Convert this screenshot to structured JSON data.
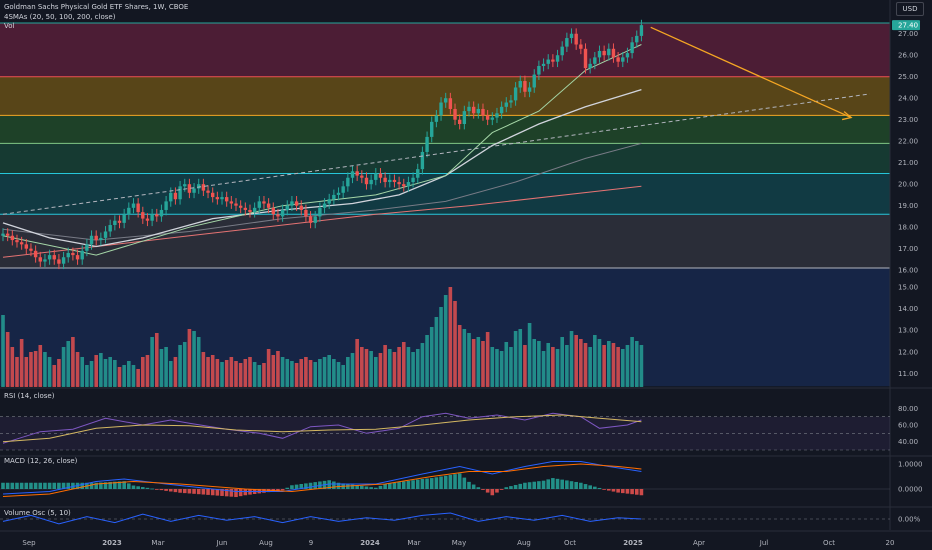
{
  "header": {
    "title": "Goldman Sachs Physical Gold ETF Shares, 1W, CBOE",
    "ma_legend": "4SMAs (20, 50, 100, 200, close)",
    "vol_legend": "Vol",
    "currency_button": "USD"
  },
  "indicators": {
    "rsi_label": "RSI (14, close)",
    "macd_label": "MACD (12, 26, close)",
    "volosc_label": "Volume Osc (5, 10)"
  },
  "colors": {
    "background": "#131722",
    "up": "#26a69a",
    "down": "#ef5350",
    "sma_white": "#d1d4dc",
    "sma_gray": "#787b86",
    "sma_green": "#a5d6a7",
    "sma_red": "#e57373",
    "arrow": "#f5a623",
    "rsi": "#7e57c2",
    "rsi_ma": "#d4b862",
    "macd": "#2962ff",
    "signal": "#ff6d00",
    "volosc": "#2962ff"
  },
  "chart_data": {
    "type": "candlestick",
    "price_current": "27.40",
    "y_axis_price": [
      "27.00",
      "26.00",
      "25.00",
      "24.00",
      "23.00",
      "22.00",
      "21.00",
      "20.00",
      "19.00",
      "18.00",
      "17.00",
      "16.00",
      "15.00",
      "14.00",
      "13.00",
      "12.00",
      "11.00"
    ],
    "y_axis_rsi": [
      "80.00",
      "60.00",
      "40.00"
    ],
    "y_axis_macd": [
      "1.0000",
      "0.0000"
    ],
    "y_axis_volosc": [
      "0.00%"
    ],
    "x_axis": [
      "Sep",
      "2023",
      "Mar",
      "Jun",
      "Aug",
      "9",
      "2024",
      "Mar",
      "May",
      "Aug",
      "Oct",
      "2025",
      "Apr",
      "Jul",
      "Oct",
      "20"
    ],
    "ylim": [
      10.5,
      28
    ],
    "zones": [
      {
        "from": 25.0,
        "to": 27.5,
        "color": "#9c2752"
      },
      {
        "from": 23.2,
        "to": 25.0,
        "color": "#b8860b"
      },
      {
        "from": 21.9,
        "to": 23.2,
        "color": "#2e7d32"
      },
      {
        "from": 20.5,
        "to": 21.9,
        "color": "#1b6b4a"
      },
      {
        "from": 18.6,
        "to": 20.5,
        "color": "#0e6b73"
      },
      {
        "from": 16.1,
        "to": 18.6,
        "color": "#4a4d57"
      },
      {
        "from": 10.6,
        "to": 16.1,
        "color": "#1a3a7a"
      }
    ],
    "levels": [
      {
        "price": 27.5,
        "color": "#26a69a"
      },
      {
        "price": 25.0,
        "color": "#ef5350"
      },
      {
        "price": 23.2,
        "color": "#f5a623"
      },
      {
        "price": 21.9,
        "color": "#81c784"
      },
      {
        "price": 20.5,
        "color": "#26c6da"
      },
      {
        "price": 18.6,
        "color": "#26c6da"
      },
      {
        "price": 16.1,
        "color": "#b2b5be"
      }
    ],
    "closes": [
      17.7,
      17.6,
      17.4,
      17.3,
      17.2,
      17.0,
      16.9,
      16.6,
      16.4,
      16.5,
      16.7,
      16.5,
      16.3,
      16.6,
      16.8,
      16.7,
      16.5,
      16.9,
      17.2,
      17.6,
      17.4,
      17.5,
      17.8,
      18.1,
      18.3,
      18.2,
      18.6,
      18.9,
      19.1,
      18.7,
      18.4,
      18.3,
      18.6,
      18.5,
      18.8,
      19.2,
      19.6,
      19.3,
      19.9,
      20.0,
      19.6,
      19.8,
      20.0,
      19.7,
      19.6,
      19.4,
      19.3,
      19.4,
      19.2,
      19.1,
      19.0,
      18.9,
      18.8,
      18.7,
      18.9,
      19.2,
      19.1,
      18.9,
      18.6,
      18.5,
      18.8,
      19.0,
      19.2,
      19.0,
      18.8,
      18.5,
      18.2,
      18.5,
      18.9,
      19.1,
      19.3,
      19.5,
      19.6,
      19.9,
      20.3,
      20.6,
      20.4,
      20.3,
      20.0,
      20.2,
      20.5,
      20.3,
      20.1,
      20.2,
      20.1,
      20.0,
      19.9,
      20.1,
      20.3,
      20.7,
      21.5,
      22.2,
      22.9,
      23.2,
      23.8,
      24.0,
      23.5,
      23.0,
      22.8,
      23.4,
      23.6,
      23.3,
      23.5,
      23.2,
      23.0,
      23.1,
      23.3,
      23.6,
      23.8,
      23.9,
      24.5,
      24.8,
      24.3,
      24.5,
      25.1,
      25.5,
      25.6,
      25.8,
      25.7,
      26.0,
      26.4,
      26.8,
      27.0,
      26.5,
      26.3,
      25.4,
      25.6,
      25.9,
      26.2,
      26.0,
      26.3,
      25.9,
      25.7,
      25.9,
      26.1,
      26.6,
      26.9,
      27.4
    ],
    "volumes": [
      0.72,
      0.55,
      0.4,
      0.3,
      0.48,
      0.3,
      0.35,
      0.36,
      0.42,
      0.35,
      0.3,
      0.22,
      0.28,
      0.4,
      0.46,
      0.5,
      0.35,
      0.3,
      0.22,
      0.26,
      0.32,
      0.34,
      0.28,
      0.3,
      0.27,
      0.2,
      0.22,
      0.26,
      0.22,
      0.18,
      0.3,
      0.32,
      0.5,
      0.54,
      0.38,
      0.4,
      0.26,
      0.3,
      0.42,
      0.45,
      0.58,
      0.56,
      0.5,
      0.35,
      0.3,
      0.32,
      0.28,
      0.25,
      0.27,
      0.3,
      0.26,
      0.24,
      0.28,
      0.3,
      0.25,
      0.22,
      0.24,
      0.38,
      0.32,
      0.36,
      0.3,
      0.28,
      0.26,
      0.24,
      0.28,
      0.3,
      0.27,
      0.25,
      0.28,
      0.3,
      0.32,
      0.28,
      0.25,
      0.22,
      0.3,
      0.34,
      0.48,
      0.4,
      0.38,
      0.36,
      0.3,
      0.34,
      0.42,
      0.38,
      0.35,
      0.4,
      0.45,
      0.4,
      0.35,
      0.38,
      0.44,
      0.52,
      0.6,
      0.7,
      0.8,
      0.92,
      1.0,
      0.86,
      0.62,
      0.58,
      0.54,
      0.48,
      0.5,
      0.46,
      0.55,
      0.4,
      0.38,
      0.36,
      0.45,
      0.4,
      0.56,
      0.58,
      0.42,
      0.64,
      0.48,
      0.46,
      0.36,
      0.44,
      0.4,
      0.38,
      0.5,
      0.42,
      0.56,
      0.52,
      0.48,
      0.44,
      0.4,
      0.52,
      0.48,
      0.42,
      0.46,
      0.44,
      0.4,
      0.38,
      0.42,
      0.5,
      0.46,
      0.42
    ],
    "sma_white": [
      [
        0,
        18.2
      ],
      [
        10,
        17.5
      ],
      [
        20,
        17.1
      ],
      [
        30,
        17.5
      ],
      [
        45,
        18.4
      ],
      [
        60,
        18.8
      ],
      [
        75,
        19.1
      ],
      [
        85,
        19.5
      ],
      [
        95,
        20.4
      ],
      [
        105,
        21.8
      ],
      [
        115,
        22.8
      ],
      [
        125,
        23.6
      ],
      [
        137,
        24.4
      ]
    ],
    "sma_gray": [
      [
        0,
        17.9
      ],
      [
        20,
        17.4
      ],
      [
        40,
        17.8
      ],
      [
        60,
        18.4
      ],
      [
        80,
        18.8
      ],
      [
        95,
        19.2
      ],
      [
        110,
        20.1
      ],
      [
        125,
        21.2
      ],
      [
        137,
        21.9
      ]
    ],
    "sma_red": [
      [
        0,
        16.6
      ],
      [
        40,
        17.6
      ],
      [
        80,
        18.6
      ],
      [
        100,
        19.0
      ],
      [
        137,
        19.9
      ]
    ],
    "sma_green": [
      [
        0,
        17.6
      ],
      [
        20,
        16.7
      ],
      [
        40,
        18.0
      ],
      [
        60,
        19.0
      ],
      [
        80,
        19.5
      ],
      [
        95,
        20.4
      ],
      [
        105,
        22.4
      ],
      [
        115,
        23.4
      ],
      [
        125,
        25.3
      ],
      [
        131,
        25.9
      ],
      [
        137,
        26.5
      ]
    ],
    "dashed_trend": [
      [
        0,
        18.6
      ],
      [
        186,
        24.2
      ]
    ],
    "arrow": [
      [
        139,
        27.3
      ],
      [
        182,
        23.1
      ]
    ],
    "rsi": [
      [
        0,
        38
      ],
      [
        8,
        52
      ],
      [
        15,
        55
      ],
      [
        22,
        68
      ],
      [
        30,
        60
      ],
      [
        36,
        66
      ],
      [
        40,
        62
      ],
      [
        48,
        55
      ],
      [
        55,
        50
      ],
      [
        60,
        44
      ],
      [
        66,
        58
      ],
      [
        72,
        60
      ],
      [
        78,
        50
      ],
      [
        85,
        56
      ],
      [
        90,
        70
      ],
      [
        95,
        74
      ],
      [
        100,
        68
      ],
      [
        106,
        72
      ],
      [
        112,
        66
      ],
      [
        118,
        74
      ],
      [
        124,
        70
      ],
      [
        128,
        56
      ],
      [
        134,
        60
      ],
      [
        137,
        66
      ]
    ],
    "rsi_ma": [
      [
        0,
        40
      ],
      [
        10,
        44
      ],
      [
        20,
        56
      ],
      [
        30,
        60
      ],
      [
        40,
        59
      ],
      [
        50,
        54
      ],
      [
        60,
        52
      ],
      [
        70,
        54
      ],
      [
        80,
        55
      ],
      [
        90,
        60
      ],
      [
        100,
        66
      ],
      [
        110,
        70
      ],
      [
        120,
        72
      ],
      [
        128,
        68
      ],
      [
        137,
        64
      ]
    ],
    "macd": [
      [
        0,
        -0.2
      ],
      [
        10,
        -0.1
      ],
      [
        20,
        0.3
      ],
      [
        26,
        0.4
      ],
      [
        35,
        0.2
      ],
      [
        50,
        -0.1
      ],
      [
        60,
        -0.1
      ],
      [
        70,
        0.2
      ],
      [
        80,
        0.2
      ],
      [
        90,
        0.6
      ],
      [
        98,
        0.9
      ],
      [
        105,
        0.6
      ],
      [
        112,
        0.9
      ],
      [
        118,
        1.1
      ],
      [
        124,
        1.1
      ],
      [
        130,
        0.9
      ],
      [
        137,
        0.7
      ]
    ],
    "signal": [
      [
        0,
        -0.3
      ],
      [
        10,
        -0.2
      ],
      [
        20,
        0.2
      ],
      [
        28,
        0.3
      ],
      [
        38,
        0.2
      ],
      [
        52,
        0.0
      ],
      [
        62,
        -0.1
      ],
      [
        72,
        0.1
      ],
      [
        82,
        0.2
      ],
      [
        92,
        0.5
      ],
      [
        100,
        0.7
      ],
      [
        108,
        0.7
      ],
      [
        116,
        0.9
      ],
      [
        124,
        1.0
      ],
      [
        132,
        0.9
      ],
      [
        137,
        0.8
      ]
    ],
    "volosc": [
      [
        0,
        -2
      ],
      [
        6,
        3
      ],
      [
        12,
        -4
      ],
      [
        18,
        2
      ],
      [
        24,
        -3
      ],
      [
        30,
        4
      ],
      [
        36,
        -2
      ],
      [
        42,
        3
      ],
      [
        48,
        -1
      ],
      [
        54,
        2
      ],
      [
        60,
        -3
      ],
      [
        66,
        2
      ],
      [
        72,
        -2
      ],
      [
        78,
        1
      ],
      [
        84,
        -1
      ],
      [
        90,
        3
      ],
      [
        96,
        5
      ],
      [
        102,
        -2
      ],
      [
        108,
        2
      ],
      [
        114,
        -1
      ],
      [
        120,
        3
      ],
      [
        126,
        -2
      ],
      [
        132,
        1
      ],
      [
        137,
        0
      ]
    ]
  }
}
